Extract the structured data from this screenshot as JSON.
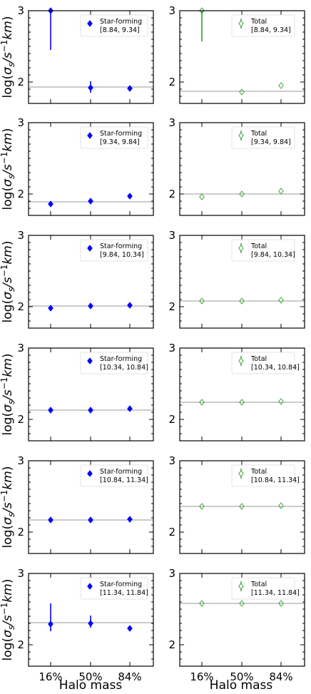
{
  "chart_data": {
    "type": "scatter",
    "layout": "grid",
    "grid_rows": 6,
    "grid_cols": 2,
    "categories": [
      "16%",
      "50%",
      "84%"
    ],
    "xlabel": "Halo mass",
    "ylabel": "log(σs/s⁻¹km)",
    "ylim": [
      1.7,
      3.0
    ],
    "yticks": [
      "2",
      "3"
    ],
    "colors": {
      "star_forming": "#0000ff",
      "total": "#2ca02c",
      "ref_line": "#999999"
    },
    "panels": [
      {
        "col": 0,
        "legend": "Star-forming",
        "range": "[8.84, 9.34]",
        "marker": "filled",
        "values": [
          3.0,
          1.92,
          1.91
        ],
        "err_low": [
          0.55,
          0.07,
          0.0
        ],
        "err_high": [
          0.0,
          0.09,
          0.0
        ],
        "hline": 1.93
      },
      {
        "col": 1,
        "legend": "Total",
        "range": "[8.84, 9.34]",
        "marker": "open",
        "values": [
          3.0,
          1.86,
          1.95
        ],
        "err_low": [
          0.43,
          0.0,
          0.0
        ],
        "err_high": [
          0.0,
          0.0,
          0.0
        ],
        "hline": 1.87
      },
      {
        "col": 0,
        "legend": "Star-forming",
        "range": "[9.34, 9.84]",
        "marker": "filled",
        "values": [
          1.86,
          1.9,
          1.97
        ],
        "err_low": [
          0,
          0,
          0
        ],
        "err_high": [
          0,
          0,
          0
        ],
        "hline": 1.89
      },
      {
        "col": 1,
        "legend": "Total",
        "range": "[9.34, 9.84]",
        "marker": "open",
        "values": [
          1.96,
          2.0,
          2.04
        ],
        "err_low": [
          0,
          0,
          0
        ],
        "err_high": [
          0,
          0,
          0
        ],
        "hline": 2.0
      },
      {
        "col": 0,
        "legend": "Star-forming",
        "range": "[9.84, 10.34]",
        "marker": "filled",
        "values": [
          1.98,
          2.01,
          2.02
        ],
        "err_low": [
          0,
          0,
          0
        ],
        "err_high": [
          0,
          0,
          0
        ],
        "hline": 2.01
      },
      {
        "col": 1,
        "legend": "Total",
        "range": "[9.84, 10.34]",
        "marker": "open",
        "values": [
          2.08,
          2.08,
          2.09
        ],
        "err_low": [
          0,
          0,
          0
        ],
        "err_high": [
          0,
          0,
          0
        ],
        "hline": 2.08
      },
      {
        "col": 0,
        "legend": "Star-forming",
        "range": "[10.34, 10.84]",
        "marker": "filled",
        "values": [
          2.13,
          2.13,
          2.15
        ],
        "err_low": [
          0,
          0,
          0
        ],
        "err_high": [
          0,
          0,
          0
        ],
        "hline": 2.13
      },
      {
        "col": 1,
        "legend": "Total",
        "range": "[10.34, 10.84]",
        "marker": "open",
        "values": [
          2.24,
          2.24,
          2.25
        ],
        "err_low": [
          0,
          0,
          0
        ],
        "err_high": [
          0,
          0,
          0
        ],
        "hline": 2.24
      },
      {
        "col": 0,
        "legend": "Star-forming",
        "range": "[10.84, 11.34]",
        "marker": "filled",
        "values": [
          2.17,
          2.17,
          2.18
        ],
        "err_low": [
          0,
          0,
          0
        ],
        "err_high": [
          0,
          0,
          0
        ],
        "hline": 2.17
      },
      {
        "col": 1,
        "legend": "Total",
        "range": "[10.84, 11.34]",
        "marker": "open",
        "values": [
          2.36,
          2.36,
          2.37
        ],
        "err_low": [
          0,
          0,
          0
        ],
        "err_high": [
          0,
          0,
          0
        ],
        "hline": 2.36
      },
      {
        "col": 0,
        "legend": "Star-forming",
        "range": "[11.34, 11.84]",
        "marker": "filled",
        "values": [
          2.29,
          2.3,
          2.23
        ],
        "err_low": [
          0.1,
          0.06,
          0.0
        ],
        "err_high": [
          0.29,
          0.11,
          0.0
        ],
        "hline": 2.31
      },
      {
        "col": 1,
        "legend": "Total",
        "range": "[11.34, 11.84]",
        "marker": "open",
        "values": [
          2.58,
          2.58,
          2.58
        ],
        "err_low": [
          0,
          0,
          0
        ],
        "err_high": [
          0,
          0,
          0
        ],
        "hline": 2.58
      }
    ]
  }
}
